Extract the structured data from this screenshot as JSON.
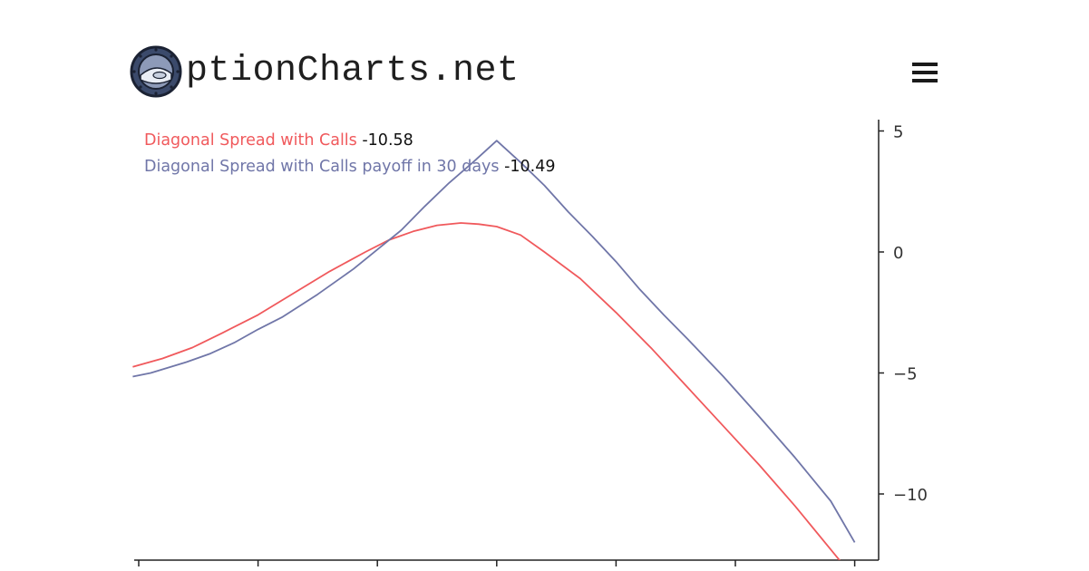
{
  "brand": {
    "text": "ptionCharts.net"
  },
  "menu": {
    "icon": "hamburger-menu-icon"
  },
  "legend": {
    "series1_label": "Diagonal Spread with Calls",
    "series1_value": "-10.58",
    "series2_label": "Diagonal Spread with Calls payoff in 30 days",
    "series2_value": "-10.49"
  },
  "colors": {
    "series1": "#f0595c",
    "series2": "#7076a8",
    "axis": "#222222"
  },
  "chart_data": {
    "type": "line",
    "title": "",
    "xlabel": "",
    "ylabel": "",
    "ylim": [
      -12.5,
      5.5
    ],
    "yticks": [
      5,
      0,
      -5,
      -10
    ],
    "ytick_labels": [
      "5",
      "0",
      "−5",
      "−10"
    ],
    "xlim": [
      -0.05,
      6.15
    ],
    "xticks": [
      0,
      1,
      2,
      3,
      4,
      5,
      6
    ],
    "grid": false,
    "legend_position": "top-left",
    "series": [
      {
        "name": "Diagonal Spread with Calls",
        "color": "#f0595c",
        "x": [
          -0.05,
          0.2,
          0.45,
          0.7,
          1.0,
          1.3,
          1.6,
          1.9,
          2.1,
          2.3,
          2.5,
          2.7,
          2.85,
          3.0,
          3.2,
          3.4,
          3.7,
          4.0,
          4.3,
          4.6,
          4.9,
          5.2,
          5.5,
          5.8,
          6.0
        ],
        "y": [
          -4.75,
          -4.4,
          -3.95,
          -3.35,
          -2.6,
          -1.7,
          -0.8,
          0.0,
          0.5,
          0.85,
          1.1,
          1.2,
          1.15,
          1.05,
          0.7,
          0.0,
          -1.1,
          -2.5,
          -4.0,
          -5.6,
          -7.2,
          -8.8,
          -10.5,
          -12.3,
          -13.5
        ]
      },
      {
        "name": "Diagonal Spread with Calls payoff in 30 days",
        "color": "#7076a8",
        "x": [
          -0.05,
          0.1,
          0.4,
          0.6,
          0.8,
          1.0,
          1.2,
          1.5,
          1.8,
          2.0,
          2.2,
          2.4,
          2.6,
          2.8,
          3.0,
          3.2,
          3.4,
          3.6,
          3.8,
          4.0,
          4.2,
          4.4,
          4.6,
          4.9,
          5.2,
          5.5,
          5.8,
          6.0
        ],
        "y": [
          -5.15,
          -5.0,
          -4.55,
          -4.2,
          -3.75,
          -3.2,
          -2.7,
          -1.75,
          -0.7,
          0.1,
          0.9,
          1.9,
          2.85,
          3.7,
          4.6,
          3.7,
          2.75,
          1.65,
          0.65,
          -0.4,
          -1.55,
          -2.6,
          -3.6,
          -5.15,
          -6.8,
          -8.5,
          -10.3,
          -12.0
        ]
      }
    ]
  }
}
